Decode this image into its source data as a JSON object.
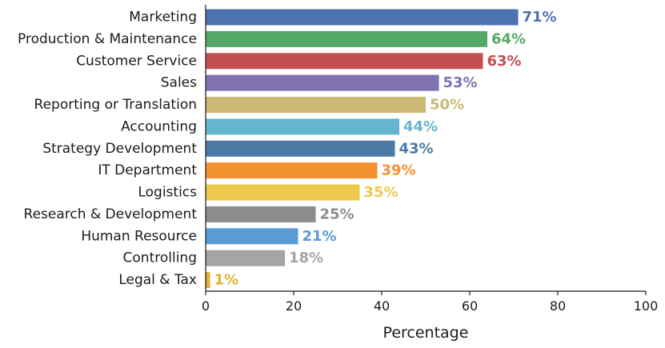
{
  "chart_data": {
    "type": "bar",
    "orientation": "horizontal",
    "categories": [
      "Marketing",
      "Production & Maintenance",
      "Customer Service",
      "Sales",
      "Reporting or Translation",
      "Accounting",
      "Strategy Development",
      "IT Department",
      "Logistics",
      "Research & Development",
      "Human Resource",
      "Controlling",
      "Legal & Tax"
    ],
    "values": [
      71,
      64,
      63,
      53,
      50,
      44,
      43,
      39,
      35,
      25,
      21,
      18,
      1
    ],
    "value_labels": [
      "71%",
      "64%",
      "63%",
      "53%",
      "50%",
      "44%",
      "43%",
      "39%",
      "35%",
      "25%",
      "21%",
      "18%",
      "1%"
    ],
    "colors": [
      "#4c72b0",
      "#55a868",
      "#c44e52",
      "#8172b2",
      "#ccb974",
      "#64b5cd",
      "#4c7aa6",
      "#f39230",
      "#ecc94b",
      "#8c8c8c",
      "#5a9bd5",
      "#a5a5a5",
      "#e0b030"
    ],
    "xlabel": "Percentage",
    "ylabel": "",
    "xlim": [
      0,
      100
    ],
    "xticks": [
      0,
      20,
      40,
      60,
      80,
      100
    ],
    "grid": false,
    "legend": "none"
  }
}
